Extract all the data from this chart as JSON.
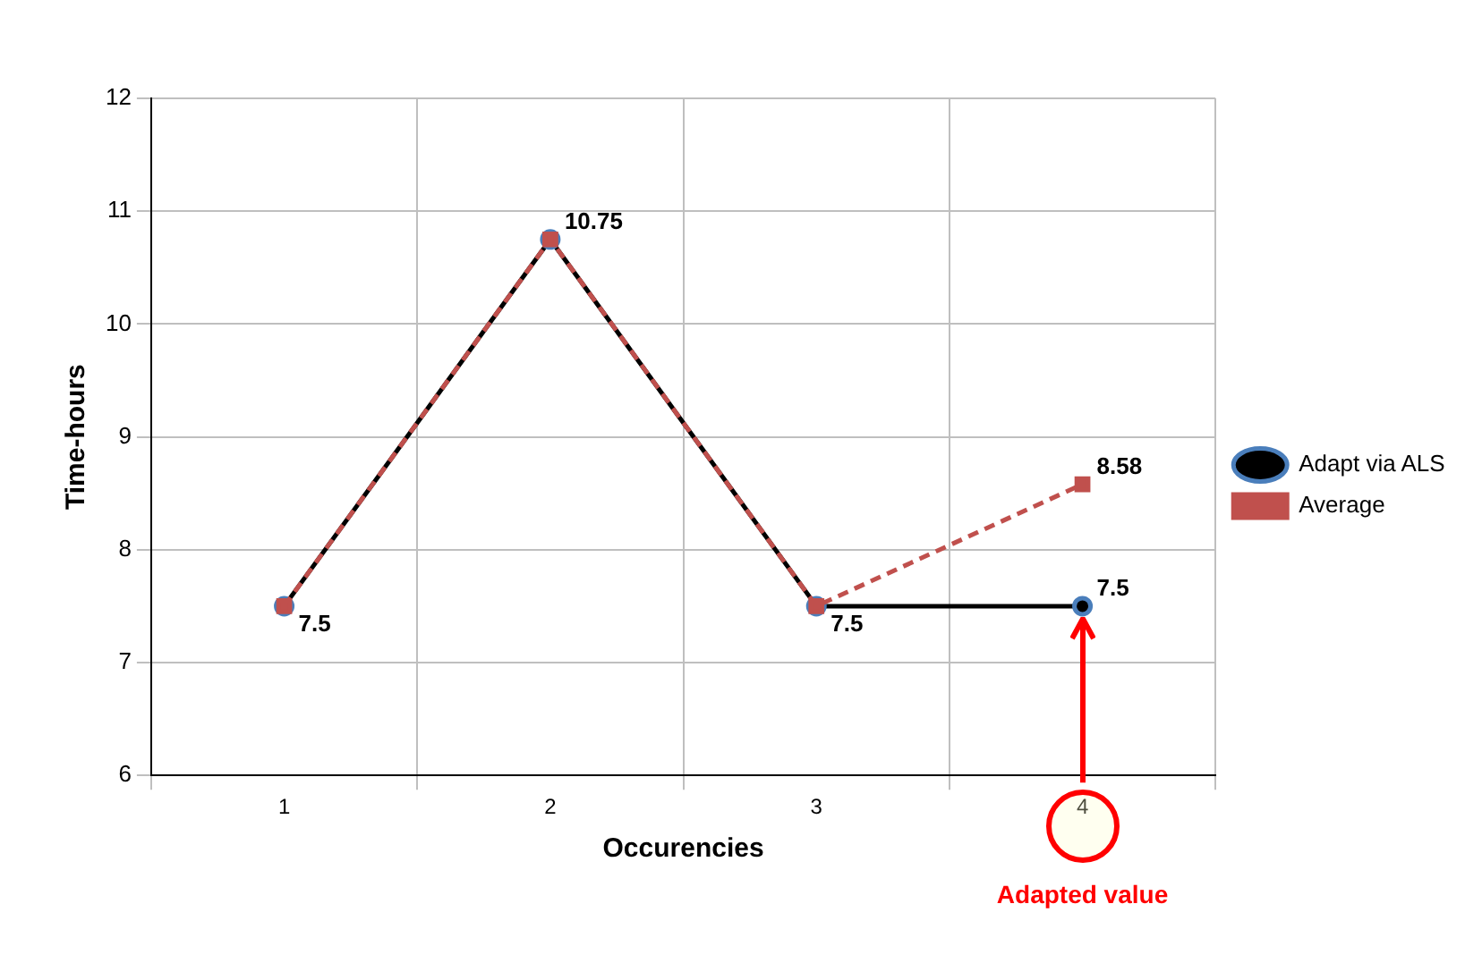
{
  "chart_data": {
    "type": "line",
    "xlabel": "Occurencies",
    "ylabel": "Time-hours",
    "categories": [
      "1",
      "2",
      "3",
      "4"
    ],
    "series": [
      {
        "name": "Adapt via ALS",
        "color": "#000000",
        "values": [
          7.5,
          10.75,
          7.5,
          7.5
        ],
        "marker": "circle",
        "line_style": "solid",
        "value_labels": [
          null,
          null,
          null,
          "7.5"
        ]
      },
      {
        "name": "Average",
        "color": "#c0504d",
        "values": [
          7.5,
          10.75,
          7.5,
          8.58
        ],
        "marker": "square",
        "line_style": "dashed",
        "value_labels": [
          "7.5",
          "10.75",
          "7.5",
          "8.58"
        ]
      }
    ],
    "ylim": [
      6,
      12
    ],
    "yticks": [
      6,
      7,
      8,
      9,
      10,
      11,
      12
    ],
    "grid": true,
    "legend": "right",
    "annotations": [
      "Adapted value"
    ]
  }
}
